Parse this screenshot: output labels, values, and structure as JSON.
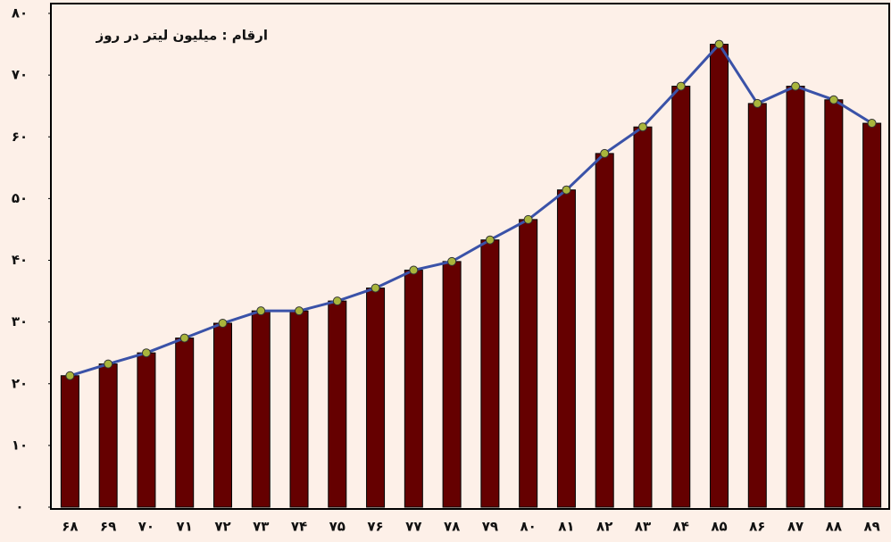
{
  "chart_data": {
    "type": "bar",
    "annotation": "ارقام : میلیون لیتر در روز",
    "categories": [
      "۶۸",
      "۶۹",
      "۷۰",
      "۷۱",
      "۷۲",
      "۷۳",
      "۷۴",
      "۷۵",
      "۷۶",
      "۷۷",
      "۷۸",
      "۷۹",
      "۸۰",
      "۸۱",
      "۸۲",
      "۸۳",
      "۸۴",
      "۸۵",
      "۸۶",
      "۸۷",
      "۸۸",
      "۸۹"
    ],
    "values": [
      21.3,
      23.2,
      25.0,
      27.4,
      29.8,
      31.8,
      31.8,
      33.4,
      35.5,
      38.4,
      39.8,
      43.3,
      46.6,
      51.4,
      57.3,
      61.6,
      68.2,
      75.0,
      65.4,
      68.2,
      66.0,
      62.2
    ],
    "color": "#650000",
    "line_color": "#3a52a8",
    "marker_color": "#a9b53c",
    "ylim": [
      0,
      80
    ],
    "yticks": [
      {
        "value": 0,
        "label": "۰"
      },
      {
        "value": 10,
        "label": "۱۰"
      },
      {
        "value": 20,
        "label": "۲۰"
      },
      {
        "value": 30,
        "label": "۳۰"
      },
      {
        "value": 40,
        "label": "۴۰"
      },
      {
        "value": 50,
        "label": "۵۰"
      },
      {
        "value": 60,
        "label": "۶۰"
      },
      {
        "value": 70,
        "label": "۷۰"
      },
      {
        "value": 80,
        "label": "۸۰"
      }
    ],
    "grid": false
  }
}
